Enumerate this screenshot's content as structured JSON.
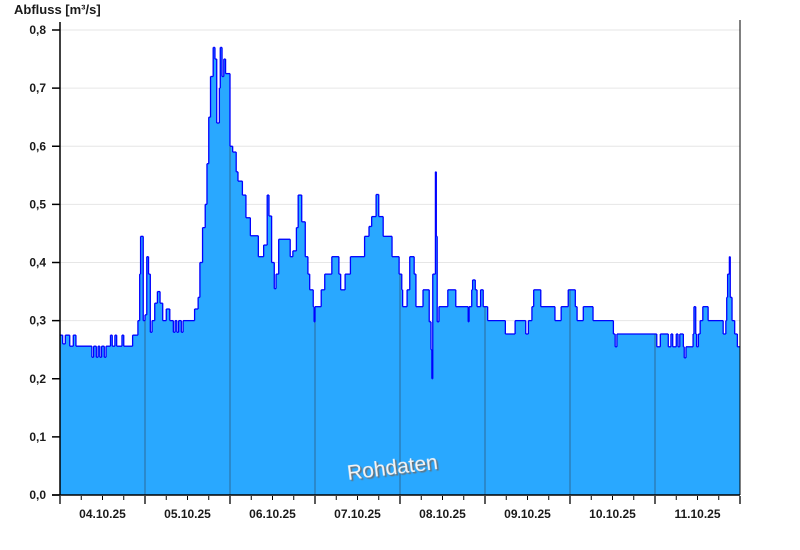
{
  "chart_data": {
    "type": "area",
    "title": "",
    "ylabel": "Abfluss [m³/s]",
    "xlabel": "",
    "ylim": [
      0,
      0.8
    ],
    "xlim": [
      "04.10.25 00:00",
      "12.10.25 00:00"
    ],
    "yticks": [
      0,
      0.1,
      0.2,
      0.3,
      0.4,
      0.5,
      0.6,
      0.7,
      0.8
    ],
    "ytick_labels": [
      "0,0",
      "0,1",
      "0,2",
      "0,3",
      "0,4",
      "0,5",
      "0,6",
      "0,7",
      "0,8"
    ],
    "xtick_labels": [
      "04.10.25",
      "05.10.25",
      "06.10.25",
      "07.10.25",
      "08.10.25",
      "09.10.25",
      "10.10.25",
      "11.10.25"
    ],
    "grid": true,
    "step": true,
    "watermark": "Rohdaten",
    "colors": {
      "fill": "#29a8ff",
      "line": "#0000ff",
      "day_separator": "#2a6a9a",
      "grid": "#e6e6e6"
    },
    "points": [
      [
        "04.10.25 00:00",
        0.275
      ],
      [
        "04.10.25 00:45",
        0.26
      ],
      [
        "04.10.25 01:30",
        0.275
      ],
      [
        "04.10.25 02:45",
        0.256
      ],
      [
        "04.10.25 03:45",
        0.275
      ],
      [
        "04.10.25 04:30",
        0.256
      ],
      [
        "04.10.25 09:00",
        0.237
      ],
      [
        "04.10.25 09:30",
        0.256
      ],
      [
        "04.10.25 10:15",
        0.237
      ],
      [
        "04.10.25 10:45",
        0.256
      ],
      [
        "04.10.25 11:15",
        0.237
      ],
      [
        "04.10.25 11:45",
        0.256
      ],
      [
        "04.10.25 12:30",
        0.237
      ],
      [
        "04.10.25 13:00",
        0.256
      ],
      [
        "04.10.25 14:15",
        0.275
      ],
      [
        "04.10.25 14:45",
        0.256
      ],
      [
        "04.10.25 15:30",
        0.275
      ],
      [
        "04.10.25 16:00",
        0.256
      ],
      [
        "04.10.25 17:30",
        0.275
      ],
      [
        "04.10.25 18:00",
        0.256
      ],
      [
        "04.10.25 20:30",
        0.275
      ],
      [
        "04.10.25 22:00",
        0.3
      ],
      [
        "04.10.25 22:30",
        0.38
      ],
      [
        "04.10.25 22:45",
        0.445
      ],
      [
        "04.10.25 23:30",
        0.3
      ],
      [
        "05.10.25 00:00",
        0.31
      ],
      [
        "05.10.25 00:30",
        0.41
      ],
      [
        "05.10.25 01:00",
        0.38
      ],
      [
        "05.10.25 01:30",
        0.28
      ],
      [
        "05.10.25 02:00",
        0.3
      ],
      [
        "05.10.25 02:45",
        0.33
      ],
      [
        "05.10.25 03:30",
        0.35
      ],
      [
        "05.10.25 04:15",
        0.33
      ],
      [
        "05.10.25 05:00",
        0.3
      ],
      [
        "05.10.25 06:00",
        0.32
      ],
      [
        "05.10.25 07:00",
        0.3
      ],
      [
        "05.10.25 08:00",
        0.28
      ],
      [
        "05.10.25 08:30",
        0.3
      ],
      [
        "05.10.25 09:00",
        0.28
      ],
      [
        "05.10.25 09:30",
        0.3
      ],
      [
        "05.10.25 10:15",
        0.28
      ],
      [
        "05.10.25 10:45",
        0.3
      ],
      [
        "05.10.25 14:00",
        0.32
      ],
      [
        "05.10.25 15:00",
        0.34
      ],
      [
        "05.10.25 15:30",
        0.4
      ],
      [
        "05.10.25 16:15",
        0.46
      ],
      [
        "05.10.25 17:00",
        0.5
      ],
      [
        "05.10.25 17:30",
        0.57
      ],
      [
        "05.10.25 18:00",
        0.65
      ],
      [
        "05.10.25 18:30",
        0.72
      ],
      [
        "05.10.25 19:15",
        0.77
      ],
      [
        "05.10.25 19:45",
        0.75
      ],
      [
        "05.10.25 20:15",
        0.64
      ],
      [
        "05.10.25 21:00",
        0.7
      ],
      [
        "05.10.25 21:15",
        0.77
      ],
      [
        "05.10.25 21:45",
        0.72
      ],
      [
        "05.10.25 22:15",
        0.75
      ],
      [
        "05.10.25 22:45",
        0.725
      ],
      [
        "06.10.25 00:00",
        0.6
      ],
      [
        "06.10.25 00:45",
        0.59
      ],
      [
        "06.10.25 01:45",
        0.556
      ],
      [
        "06.10.25 02:15",
        0.54
      ],
      [
        "06.10.25 03:30",
        0.516
      ],
      [
        "06.10.25 04:30",
        0.477
      ],
      [
        "06.10.25 05:45",
        0.446
      ],
      [
        "06.10.25 08:00",
        0.41
      ],
      [
        "06.10.25 09:30",
        0.43
      ],
      [
        "06.10.25 10:30",
        0.516
      ],
      [
        "06.10.25 11:00",
        0.48
      ],
      [
        "06.10.25 11:45",
        0.4
      ],
      [
        "06.10.25 12:30",
        0.355
      ],
      [
        "06.10.25 13:00",
        0.38
      ],
      [
        "06.10.25 13:45",
        0.44
      ],
      [
        "06.10.25 17:00",
        0.41
      ],
      [
        "06.10.25 17:45",
        0.42
      ],
      [
        "06.10.25 18:45",
        0.46
      ],
      [
        "06.10.25 19:15",
        0.516
      ],
      [
        "06.10.25 20:15",
        0.47
      ],
      [
        "06.10.25 21:15",
        0.41
      ],
      [
        "06.10.25 22:00",
        0.38
      ],
      [
        "06.10.25 22:30",
        0.353
      ],
      [
        "06.10.25 23:30",
        0.324
      ],
      [
        "06.10.25 23:45",
        0.298
      ],
      [
        "07.10.25 00:00",
        0.324
      ],
      [
        "07.10.25 01:45",
        0.353
      ],
      [
        "07.10.25 02:45",
        0.38
      ],
      [
        "07.10.25 04:45",
        0.41
      ],
      [
        "07.10.25 06:45",
        0.38
      ],
      [
        "07.10.25 07:15",
        0.353
      ],
      [
        "07.10.25 08:30",
        0.38
      ],
      [
        "07.10.25 10:00",
        0.41
      ],
      [
        "07.10.25 14:00",
        0.445
      ],
      [
        "07.10.25 15:15",
        0.462
      ],
      [
        "07.10.25 16:00",
        0.479
      ],
      [
        "07.10.25 17:15",
        0.517
      ],
      [
        "07.10.25 18:00",
        0.479
      ],
      [
        "07.10.25 19:15",
        0.445
      ],
      [
        "07.10.25 21:45",
        0.41
      ],
      [
        "07.10.25 23:45",
        0.38
      ],
      [
        "08.10.25 00:30",
        0.353
      ],
      [
        "08.10.25 00:45",
        0.324
      ],
      [
        "08.10.25 02:00",
        0.353
      ],
      [
        "08.10.25 02:45",
        0.41
      ],
      [
        "08.10.25 04:00",
        0.38
      ],
      [
        "08.10.25 04:30",
        0.324
      ],
      [
        "08.10.25 06:30",
        0.353
      ],
      [
        "08.10.25 08:15",
        0.298
      ],
      [
        "08.10.25 08:45",
        0.25
      ],
      [
        "08.10.25 09:00",
        0.2
      ],
      [
        "08.10.25 09:15",
        0.38
      ],
      [
        "08.10.25 10:00",
        0.556
      ],
      [
        "08.10.25 10:15",
        0.445
      ],
      [
        "08.10.25 10:30",
        0.298
      ],
      [
        "08.10.25 11:00",
        0.324
      ],
      [
        "08.10.25 13:30",
        0.353
      ],
      [
        "08.10.25 15:45",
        0.324
      ],
      [
        "08.10.25 19:15",
        0.298
      ],
      [
        "08.10.25 19:30",
        0.324
      ],
      [
        "08.10.25 20:15",
        0.353
      ],
      [
        "08.10.25 20:30",
        0.37
      ],
      [
        "08.10.25 21:15",
        0.353
      ],
      [
        "08.10.25 21:45",
        0.324
      ],
      [
        "08.10.25 22:45",
        0.353
      ],
      [
        "08.10.25 23:30",
        0.324
      ],
      [
        "09.10.25 00:45",
        0.3
      ],
      [
        "09.10.25 05:45",
        0.277
      ],
      [
        "09.10.25 08:30",
        0.3
      ],
      [
        "09.10.25 11:30",
        0.277
      ],
      [
        "09.10.25 12:15",
        0.3
      ],
      [
        "09.10.25 13:15",
        0.324
      ],
      [
        "09.10.25 13:45",
        0.353
      ],
      [
        "09.10.25 15:45",
        0.324
      ],
      [
        "09.10.25 19:45",
        0.3
      ],
      [
        "09.10.25 21:30",
        0.324
      ],
      [
        "09.10.25 23:30",
        0.353
      ],
      [
        "10.10.25 01:30",
        0.324
      ],
      [
        "10.10.25 02:00",
        0.3
      ],
      [
        "10.10.25 03:45",
        0.324
      ],
      [
        "10.10.25 06:30",
        0.3
      ],
      [
        "10.10.25 12:15",
        0.277
      ],
      [
        "10.10.25 12:45",
        0.255
      ],
      [
        "10.10.25 13:15",
        0.277
      ],
      [
        "11.10.25 00:30",
        0.255
      ],
      [
        "11.10.25 01:30",
        0.277
      ],
      [
        "11.10.25 03:45",
        0.255
      ],
      [
        "11.10.25 04:30",
        0.277
      ],
      [
        "11.10.25 05:00",
        0.255
      ],
      [
        "11.10.25 06:00",
        0.277
      ],
      [
        "11.10.25 06:30",
        0.255
      ],
      [
        "11.10.25 07:00",
        0.277
      ],
      [
        "11.10.25 08:00",
        0.255
      ],
      [
        "11.10.25 08:15",
        0.236
      ],
      [
        "11.10.25 08:45",
        0.255
      ],
      [
        "11.10.25 10:45",
        0.277
      ],
      [
        "11.10.25 11:00",
        0.324
      ],
      [
        "11.10.25 11:30",
        0.277
      ],
      [
        "11.10.25 11:45",
        0.255
      ],
      [
        "11.10.25 12:15",
        0.277
      ],
      [
        "11.10.25 12:45",
        0.3
      ],
      [
        "11.10.25 13:30",
        0.324
      ],
      [
        "11.10.25 15:00",
        0.3
      ],
      [
        "11.10.25 19:15",
        0.277
      ],
      [
        "11.10.25 20:00",
        0.3
      ],
      [
        "11.10.25 20:15",
        0.34
      ],
      [
        "11.10.25 20:30",
        0.38
      ],
      [
        "11.10.25 21:00",
        0.41
      ],
      [
        "11.10.25 21:15",
        0.34
      ],
      [
        "11.10.25 21:45",
        0.3
      ],
      [
        "11.10.25 22:30",
        0.277
      ],
      [
        "11.10.25 23:15",
        0.255
      ]
    ]
  }
}
